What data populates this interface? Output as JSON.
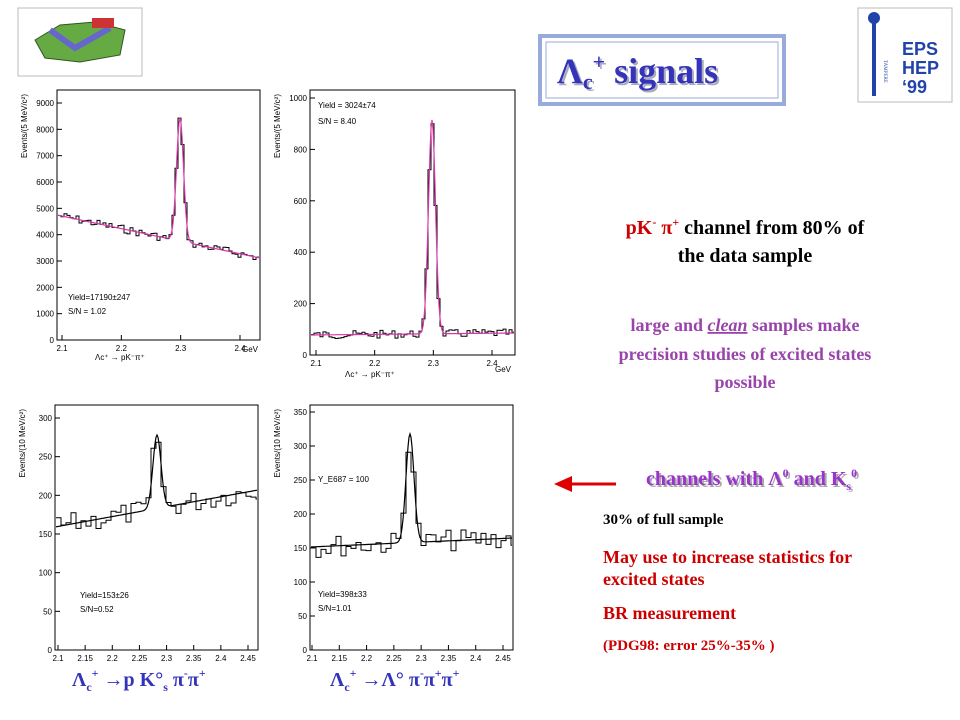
{
  "title": {
    "parts": [
      "Λ",
      "c",
      "+",
      " signals"
    ]
  },
  "logo_right": {
    "lines": [
      "EPS",
      "HEP",
      "‘99"
    ],
    "side": "TAMPERE"
  },
  "plots": [
    {
      "ylabel": "Events/(5 MeV/c²)",
      "yticks": [
        "0",
        "1000",
        "2000",
        "3000",
        "4000",
        "5000",
        "6000",
        "7000",
        "8000",
        "9000"
      ],
      "xticks": [
        "2.1",
        "2.2",
        "2.3",
        "2.4"
      ],
      "xunit": "GeV",
      "xlabel": "Λc⁺ → pK⁻π⁺",
      "notes": [
        "Yield=17190±247",
        "S/N = 1.02"
      ]
    },
    {
      "ylabel": "Events/(5 MeV/c²)",
      "yticks": [
        "0",
        "200",
        "400",
        "600",
        "800",
        "1000"
      ],
      "xticks": [
        "2.1",
        "2.2",
        "2.3",
        "2.4"
      ],
      "xunit": "GeV",
      "xlabel": "Λc⁺ → pK⁻π⁺",
      "notes": [
        "Yield = 3024±74",
        "S/N = 8.40"
      ]
    },
    {
      "ylabel": "Events/(10 MeV/c²)",
      "yticks": [
        "0",
        "50",
        "100",
        "150",
        "200",
        "250",
        "300"
      ],
      "xticks": [
        "2.1",
        "2.15",
        "2.2",
        "2.25",
        "2.3",
        "2.35",
        "2.4",
        "2.45"
      ],
      "xunit": "",
      "xlabel": "",
      "notes": [
        "Yield=153±26",
        "S/N=0.52"
      ]
    },
    {
      "ylabel": "Events/(10 MeV/c²)",
      "yticks": [
        "0",
        "50",
        "100",
        "150",
        "200",
        "250",
        "300",
        "350"
      ],
      "xticks": [
        "2.1",
        "2.15",
        "2.2",
        "2.25",
        "2.3",
        "2.35",
        "2.4",
        "2.45"
      ],
      "xunit": "",
      "xlabel": "",
      "notes": [
        "Yield=398±33",
        "S/N=1.01",
        "Y_E687 = 100"
      ]
    }
  ],
  "captions": [
    {
      "parts": [
        "Λ",
        "c",
        "+",
        " →p K°",
        "s",
        " π",
        "-",
        "π",
        "+"
      ]
    },
    {
      "parts": [
        "Λ",
        "c",
        "+",
        " →Λ° π",
        "-",
        "π",
        "+",
        "π",
        "+"
      ]
    }
  ],
  "right": {
    "channel": {
      "red": "pK",
      "sup1": "-",
      "pi": " π",
      "sup2": "+",
      "rest": " channel from 80% of",
      "line2": "the data sample"
    },
    "clean": {
      "lines": [
        "large and ",
        "clean",
        " samples make",
        "precision studies of excited states",
        "possible"
      ]
    },
    "lambda": {
      "parts": [
        "channels with Λ",
        "0",
        " and K",
        "s",
        "0"
      ]
    },
    "fraction": "30%  of  full sample",
    "increase": [
      "May use to increase statistics for",
      "excited states"
    ],
    "br": "BR measurement",
    "pdg": "(PDG98: error 25%-35% )"
  }
}
